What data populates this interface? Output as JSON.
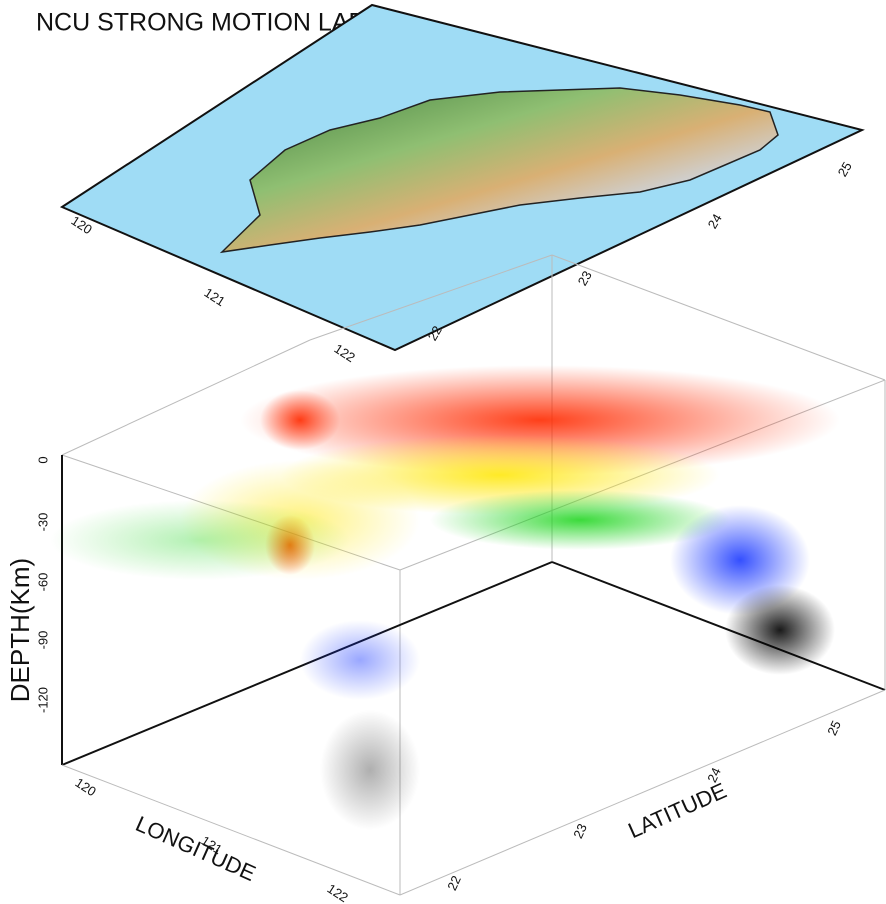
{
  "title": "NCU STRONG MOTION LAB.",
  "map": {
    "lon_ticks": [
      "120",
      "121",
      "122"
    ],
    "lat_ticks": [
      "22",
      "23",
      "24",
      "25"
    ]
  },
  "axes": {
    "depth_label": "DEPTH(Km)",
    "depth_ticks": [
      "0",
      "-30",
      "-60",
      "-90",
      "-120"
    ],
    "lon_label": "LONGITUDE",
    "lat_label": "LATITUDE",
    "lon_ticks": [
      "120",
      "121",
      "122"
    ],
    "lat_ticks": [
      "22",
      "23",
      "24",
      "25"
    ]
  }
}
